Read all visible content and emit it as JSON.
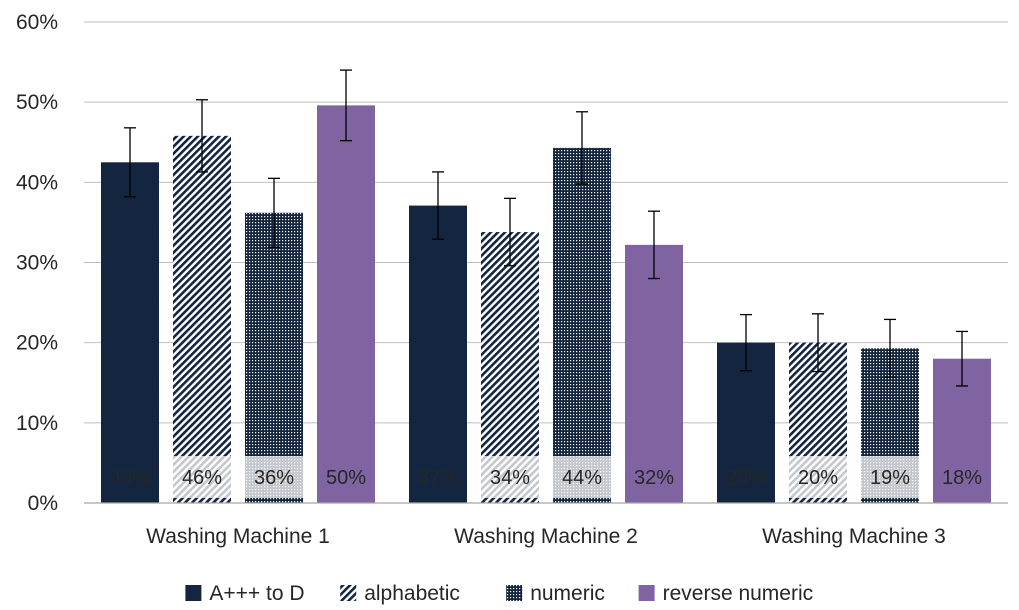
{
  "chart_data": {
    "type": "bar",
    "categories": [
      "Washing Machine 1",
      "Washing Machine 2",
      "Washing Machine 3"
    ],
    "series": [
      {
        "name": "A+++ to D",
        "values": [
          42.5,
          37.1,
          20.0
        ],
        "labels": [
          "43%",
          "37%",
          "20%"
        ],
        "error": [
          4.3,
          4.2,
          3.5
        ],
        "color": "#13253f",
        "pattern": "solid"
      },
      {
        "name": "alphabetic",
        "values": [
          45.8,
          33.8,
          20.0
        ],
        "labels": [
          "46%",
          "34%",
          "20%"
        ],
        "error": [
          4.5,
          4.2,
          3.6
        ],
        "color": "#13253f",
        "pattern": "diagonal"
      },
      {
        "name": "numeric",
        "values": [
          36.2,
          44.3,
          19.3
        ],
        "labels": [
          "36%",
          "44%",
          "19%"
        ],
        "error": [
          4.3,
          4.5,
          3.6
        ],
        "color": "#13253f",
        "pattern": "dots"
      },
      {
        "name": "reverse numeric",
        "values": [
          49.6,
          32.2,
          18.0
        ],
        "labels": [
          "50%",
          "32%",
          "18%"
        ],
        "error": [
          4.4,
          4.2,
          3.4
        ],
        "color": "#8064a2",
        "pattern": "solid"
      }
    ],
    "y_ticks": [
      "0%",
      "10%",
      "20%",
      "30%",
      "40%",
      "50%",
      "60%"
    ],
    "ylim": [
      0,
      60
    ],
    "grid": true,
    "legend": "bottom",
    "title": "",
    "xlabel": "",
    "ylabel": ""
  }
}
